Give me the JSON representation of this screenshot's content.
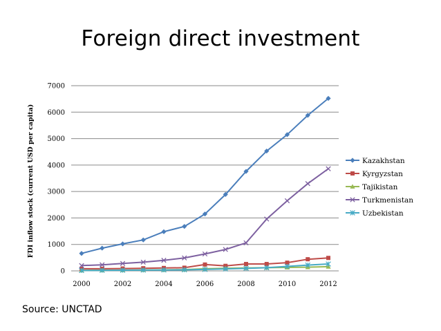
{
  "slide": {
    "title": "Foreign direct investment",
    "source": "Source: UNCTAD"
  },
  "chart_data": {
    "type": "line",
    "title": "",
    "xlabel": "",
    "ylabel": "FDI inflow stock (current USD per capita)",
    "x": [
      2000,
      2001,
      2002,
      2003,
      2004,
      2005,
      2006,
      2007,
      2008,
      2009,
      2010,
      2011,
      2012
    ],
    "x_tick_labels": [
      "2000",
      "2002",
      "2004",
      "2006",
      "2008",
      "2010",
      "2012"
    ],
    "y_tick_labels": [
      "0",
      "1000",
      "2000",
      "3000",
      "4000",
      "5000",
      "6000",
      "7000"
    ],
    "ylim": [
      0,
      7000
    ],
    "grid": "horizontal",
    "legend_position": "right",
    "series": [
      {
        "name": "Kazakhstan",
        "color": "#4A7EBB",
        "marker": "diamond",
        "values": [
          660,
          860,
          1020,
          1170,
          1480,
          1680,
          2150,
          2890,
          3760,
          4530,
          5150,
          5880,
          6520
        ]
      },
      {
        "name": "Kyrgyzstan",
        "color": "#BE4B48",
        "marker": "square",
        "values": [
          80,
          80,
          90,
          100,
          110,
          120,
          240,
          190,
          260,
          260,
          310,
          440,
          490
        ]
      },
      {
        "name": "Tajikistan",
        "color": "#98B954",
        "marker": "triangle",
        "values": [
          20,
          25,
          30,
          35,
          40,
          50,
          80,
          100,
          110,
          120,
          130,
          140,
          160
        ]
      },
      {
        "name": "Turkmenistan",
        "color": "#7D60A0",
        "marker": "x",
        "values": [
          200,
          230,
          280,
          330,
          400,
          490,
          640,
          810,
          1060,
          1960,
          2650,
          3300,
          3860
        ]
      },
      {
        "name": "Uzbekistan",
        "color": "#46AAC5",
        "marker": "star",
        "values": [
          15,
          20,
          25,
          30,
          35,
          40,
          55,
          75,
          95,
          120,
          170,
          220,
          260
        ]
      }
    ]
  }
}
